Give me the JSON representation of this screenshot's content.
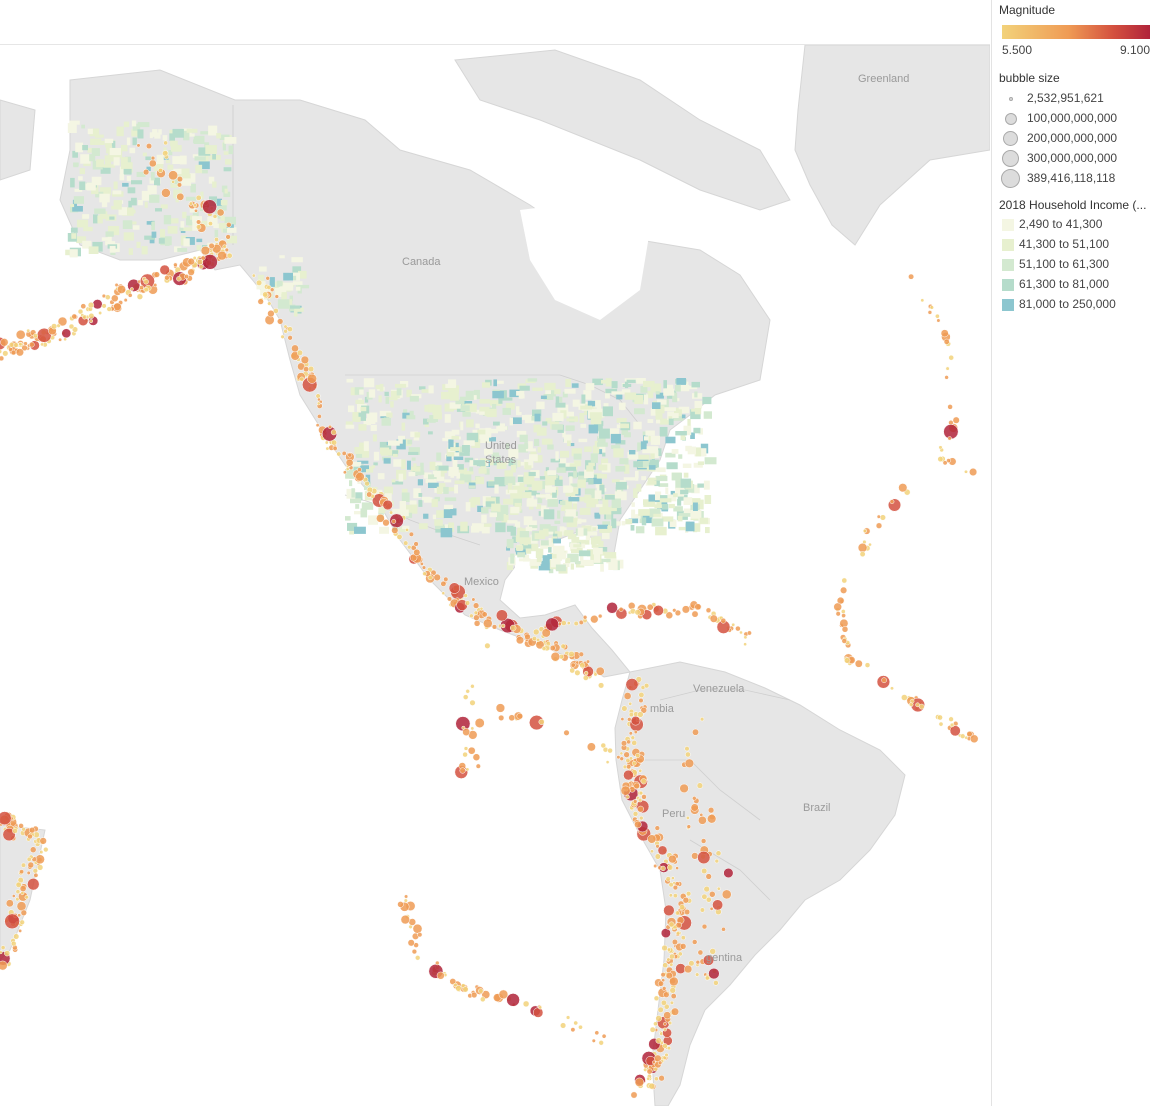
{
  "map": {
    "place_labels": [
      "Greenland",
      "Canada",
      "United",
      "States",
      "Mexico",
      "Venezuela",
      "mbia",
      "Brazil",
      "Peru",
      "gentina"
    ]
  },
  "legend": {
    "magnitude": {
      "title": "Magnitude",
      "min_label": "5.500",
      "max_label": "9.100",
      "colors": [
        "#f2d27a",
        "#ef9b55",
        "#d4513f",
        "#b0233a"
      ]
    },
    "bubble_size": {
      "title": "bubble size",
      "items": [
        {
          "label": "2,532,951,621",
          "value": 2532951621
        },
        {
          "label": "100,000,000,000",
          "value": 100000000000
        },
        {
          "label": "200,000,000,000",
          "value": 200000000000
        },
        {
          "label": "300,000,000,000",
          "value": 300000000000
        },
        {
          "label": "389,416,118,118",
          "value": 389416118118
        }
      ]
    },
    "household_income": {
      "title": "2018 Household Income (...",
      "items": [
        {
          "label": "2,490 to 41,300",
          "color": "#f4f6e3"
        },
        {
          "label": "41,300 to 51,100",
          "color": "#e7f0cf"
        },
        {
          "label": "51,100 to 61,300",
          "color": "#d3e9d0"
        },
        {
          "label": "61,300 to 81,000",
          "color": "#b5dccb"
        },
        {
          "label": "81,000 to 250,000",
          "color": "#8cc6cf"
        }
      ]
    }
  }
}
